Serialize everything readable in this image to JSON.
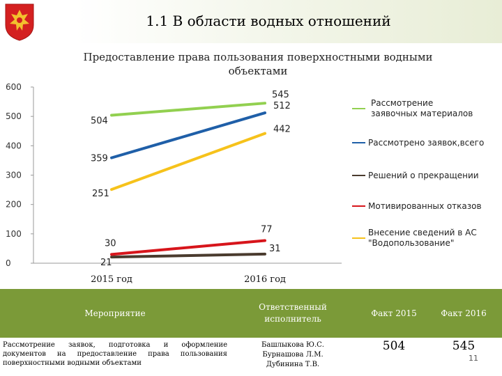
{
  "header": {
    "title": "1.1 В области водных отношений"
  },
  "chart_data": {
    "type": "line",
    "title": "Предоставление права пользования поверхностными водными объектами",
    "categories": [
      "2015 год",
      "2016 год"
    ],
    "ylim": [
      0,
      600
    ],
    "yticks": [
      0,
      100,
      200,
      300,
      400,
      500,
      600
    ],
    "grid": false,
    "legend": "right",
    "series": [
      {
        "name": "Рассмотрение заявочных материалов",
        "values": [
          504,
          545
        ],
        "color": "#92d050"
      },
      {
        "name": "Рассмотрено заявок,всего",
        "values": [
          359,
          512
        ],
        "color": "#1f5fa8"
      },
      {
        "name": "Решений о прекращении",
        "values": [
          21,
          31
        ],
        "color": "#4a3b2e"
      },
      {
        "name": "Мотивированных отказов",
        "values": [
          30,
          77
        ],
        "color": "#d7151b"
      },
      {
        "name": "Внесение сведений в АС \"Водопользование\"",
        "values": [
          251,
          442
        ],
        "color": "#f6c21b"
      }
    ]
  },
  "table": {
    "headers": {
      "event": "Мероприятие",
      "executor": "Ответственный исполнитель",
      "fact2015": "Факт 2015",
      "fact2016": "Факт 2016"
    },
    "rows": [
      {
        "event": "Рассмотрение заявок, подготовка и оформление документов на предоставление права пользования поверхностными водными объектами",
        "executor": "Башлыкова Ю.С. Бурнашова Л.М. Дубинина Т.В.",
        "fact2015": "504",
        "fact2016": "545"
      }
    ]
  },
  "footer": {
    "page_number": "11"
  }
}
